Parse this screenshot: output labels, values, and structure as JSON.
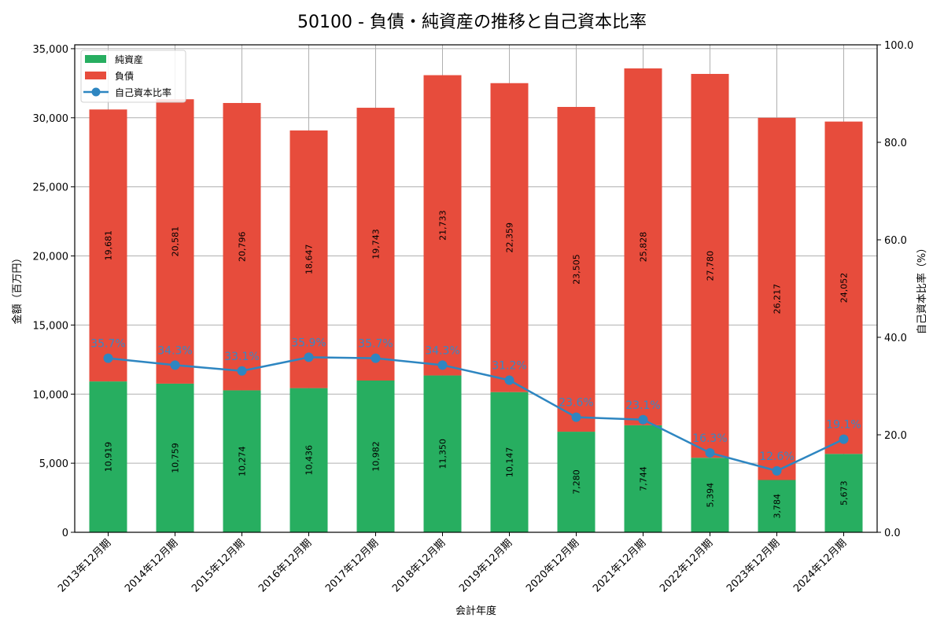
{
  "title": "50100 - 負債・純資産の推移と自己資本比率",
  "colors": {
    "net_assets": "#27ae60",
    "liabilities": "#e74c3c",
    "equity_ratio": "#2e86c1",
    "grid": "#b0b0b0"
  },
  "chart_data": {
    "type": "bar",
    "stacked": true,
    "title": "50100 - 負債・純資産の推移と自己資本比率",
    "xlabel": "会計年度",
    "ylabel": "金額（百万円）",
    "y2label": "自己資本比率（%）",
    "ylim": [
      0,
      35280
    ],
    "y2lim": [
      0,
      100
    ],
    "yticks": [
      "0",
      "5,000",
      "10,000",
      "15,000",
      "20,000",
      "25,000",
      "30,000",
      "35,000"
    ],
    "ytick_values": [
      0,
      5000,
      10000,
      15000,
      20000,
      25000,
      30000,
      35000
    ],
    "y2ticks": [
      "0.0",
      "20.0",
      "40.0",
      "60.0",
      "80.0",
      "100.0"
    ],
    "y2tick_values": [
      0,
      20,
      40,
      60,
      80,
      100
    ],
    "grid": true,
    "legend_position": "upper left",
    "categories": [
      "2013年12月期",
      "2014年12月期",
      "2015年12月期",
      "2016年12月期",
      "2017年12月期",
      "2018年12月期",
      "2019年12月期",
      "2020年12月期",
      "2021年12月期",
      "2022年12月期",
      "2023年12月期",
      "2024年12月期"
    ],
    "series": [
      {
        "name": "純資産",
        "type": "bar",
        "axis": "left",
        "values": [
          10919,
          10759,
          10274,
          10436,
          10982,
          11350,
          10147,
          7280,
          7744,
          5394,
          3784,
          5673
        ],
        "labels": [
          "10,919",
          "10,759",
          "10,274",
          "10,436",
          "10,982",
          "11,350",
          "10,147",
          "7,280",
          "7,744",
          "5,394",
          "3,784",
          "5,673"
        ]
      },
      {
        "name": "負債",
        "type": "bar",
        "axis": "left",
        "values": [
          19681,
          20581,
          20796,
          18647,
          19743,
          21733,
          22359,
          23505,
          25828,
          27780,
          26217,
          24052
        ],
        "labels": [
          "19,681",
          "20,581",
          "20,796",
          "18,647",
          "19,743",
          "21,733",
          "22,359",
          "23,505",
          "25,828",
          "27,780",
          "26,217",
          "24,052"
        ]
      },
      {
        "name": "自己資本比率",
        "type": "line",
        "axis": "right",
        "values": [
          35.7,
          34.3,
          33.1,
          35.9,
          35.7,
          34.3,
          31.2,
          23.6,
          23.1,
          16.3,
          12.6,
          19.1
        ],
        "labels": [
          "35.7%",
          "34.3%",
          "33.1%",
          "35.9%",
          "35.7%",
          "34.3%",
          "31.2%",
          "23.6%",
          "23.1%",
          "16.3%",
          "12.6%",
          "19.1%"
        ]
      }
    ]
  }
}
